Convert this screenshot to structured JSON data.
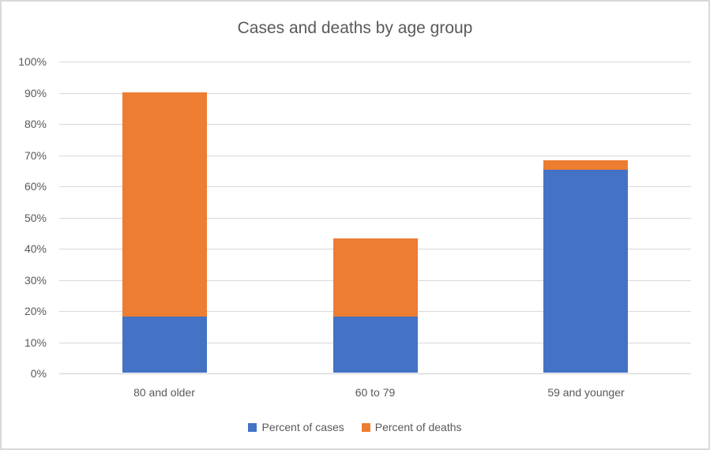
{
  "chart_data": {
    "type": "bar",
    "stacked": true,
    "title": "Cases and deaths by age group",
    "categories": [
      "80 and older",
      "60 to 79",
      "59 and younger"
    ],
    "series": [
      {
        "name": "Percent of cases",
        "color": "#4472C4",
        "values": [
          18,
          18,
          65
        ]
      },
      {
        "name": "Percent of deaths",
        "color": "#ED7D31",
        "values": [
          72,
          25,
          3
        ]
      }
    ],
    "stack_totals": [
      90,
      43,
      68
    ],
    "ylim": [
      0,
      100
    ],
    "ytick_step": 10,
    "ytick_labels": [
      "0%",
      "10%",
      "20%",
      "30%",
      "40%",
      "50%",
      "60%",
      "70%",
      "80%",
      "90%",
      "100%"
    ],
    "grid": true,
    "legend_position": "bottom"
  },
  "colors": {
    "grid": "#D9D9D9",
    "axis": "#D0D0D0",
    "text": "#595959",
    "border": "#D9D9D9",
    "background": "#FFFFFF"
  }
}
